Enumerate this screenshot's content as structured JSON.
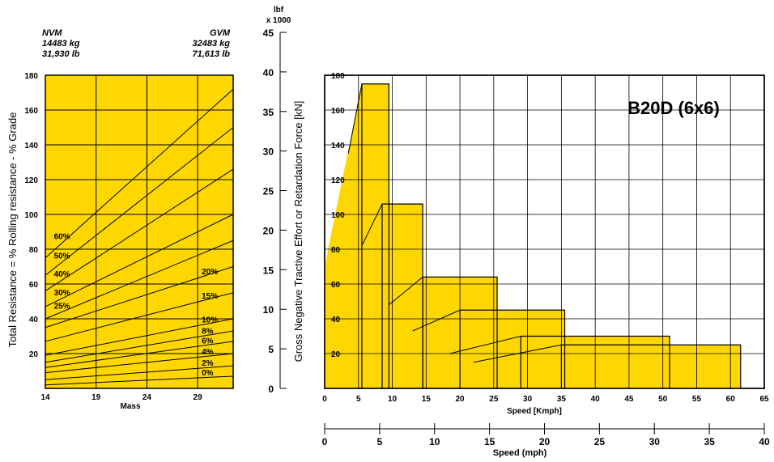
{
  "colors": {
    "fill": "#FFD700",
    "line": "#000000"
  },
  "left_header": {
    "nvm_title": "NVM",
    "nvm_kg": "14483 kg",
    "nvm_lb": "31,930 lb",
    "gvm_title": "GVM",
    "gvm_kg": "32483 kg",
    "gvm_lb": "71,613 lb"
  },
  "right_header": {
    "unit_line1": "lbf",
    "unit_line2": "x 1000",
    "model": "B20D (6x6)"
  },
  "chart_data": [
    {
      "type": "line",
      "name": "grade_chart",
      "xlabel": "Mass",
      "ylabel": "Total Resistance = % Rolling resistance - % Grade",
      "xlim": [
        14,
        32.5
      ],
      "ylim": [
        0,
        180
      ],
      "xticks": [
        14,
        19,
        24,
        29
      ],
      "yticks": [
        20,
        40,
        60,
        80,
        100,
        120,
        140,
        160,
        180
      ],
      "grid": true,
      "series": [
        {
          "label": "0%",
          "x": [
            14,
            32.5
          ],
          "y": [
            2,
            7
          ]
        },
        {
          "label": "2%",
          "x": [
            14,
            32.5
          ],
          "y": [
            5,
            13
          ]
        },
        {
          "label": "4%",
          "x": [
            14,
            32.5
          ],
          "y": [
            9,
            20
          ]
        },
        {
          "label": "6%",
          "x": [
            14,
            32.5
          ],
          "y": [
            12,
            27
          ]
        },
        {
          "label": "8%",
          "x": [
            14,
            32.5
          ],
          "y": [
            15,
            33
          ]
        },
        {
          "label": "10%",
          "x": [
            14,
            32.5
          ],
          "y": [
            19,
            40
          ]
        },
        {
          "label": "15%",
          "x": [
            14,
            32.5
          ],
          "y": [
            27,
            55
          ]
        },
        {
          "label": "20%",
          "x": [
            14,
            32.5
          ],
          "y": [
            35,
            70
          ]
        },
        {
          "label": "25%",
          "x": [
            14,
            32.5
          ],
          "y": [
            40,
            85
          ]
        },
        {
          "label": "30%",
          "x": [
            14,
            32.5
          ],
          "y": [
            47,
            100
          ]
        },
        {
          "label": "40%",
          "x": [
            14,
            32.5
          ],
          "y": [
            56,
            126
          ]
        },
        {
          "label": "50%",
          "x": [
            14,
            32.5
          ],
          "y": [
            65,
            150
          ]
        },
        {
          "label": "60%",
          "x": [
            14,
            32.5
          ],
          "y": [
            75,
            172
          ]
        }
      ],
      "label_positions": {
        "60%": "left",
        "50%": "left",
        "40%": "left",
        "30%": "left",
        "25%": "left",
        "20%": "right",
        "15%": "right",
        "10%": "right",
        "8%": "right",
        "6%": "right",
        "4%": "right",
        "2%": "right",
        "0%": "right"
      }
    },
    {
      "type": "area",
      "name": "retardation_chart",
      "title": "B20D (6x6)",
      "xlabel": "Speed [Kmph]",
      "ylabel": "Gross Negative Tractive Effort or Retardation Force [kN]",
      "xlim": [
        0,
        65
      ],
      "ylim": [
        0,
        180
      ],
      "xticks": [
        0,
        5,
        10,
        15,
        20,
        25,
        30,
        35,
        40,
        45,
        50,
        55,
        60,
        65
      ],
      "yticks": [
        20,
        40,
        60,
        80,
        100,
        120,
        140,
        160,
        180
      ],
      "secondary_y": {
        "label": "lbf x 1000",
        "ticks": [
          0,
          5,
          10,
          15,
          20,
          25,
          30,
          35,
          40,
          45
        ]
      },
      "secondary_x": {
        "label": "Speed (mph)",
        "ticks": [
          0,
          5,
          10,
          15,
          20,
          25,
          30,
          35,
          40
        ]
      },
      "grid": true,
      "gears": [
        {
          "x_start": 5.5,
          "x_end": 9.5,
          "value": 175
        },
        {
          "x_start": 8.5,
          "x_end": 14.5,
          "value": 106
        },
        {
          "x_start": 14.5,
          "x_end": 25.5,
          "value": 64
        },
        {
          "x_start": 20,
          "x_end": 35.5,
          "value": 45
        },
        {
          "x_start": 29,
          "x_end": 51,
          "value": 30
        },
        {
          "x_start": 35,
          "x_end": 61.5,
          "value": 25
        }
      ],
      "ramp": [
        [
          0,
          68
        ],
        [
          0.5,
          80
        ],
        [
          5.5,
          175
        ]
      ],
      "ramp_lines": [
        [
          [
            3.5,
            135
          ],
          [
            5.5,
            175
          ]
        ],
        [
          [
            5.5,
            82
          ],
          [
            8.5,
            106
          ]
        ],
        [
          [
            9.5,
            48
          ],
          [
            14.5,
            64
          ]
        ],
        [
          [
            13,
            33
          ],
          [
            20,
            45
          ]
        ],
        [
          [
            18.5,
            20
          ],
          [
            29,
            30
          ]
        ],
        [
          [
            22,
            15
          ],
          [
            35,
            25
          ]
        ]
      ]
    }
  ]
}
